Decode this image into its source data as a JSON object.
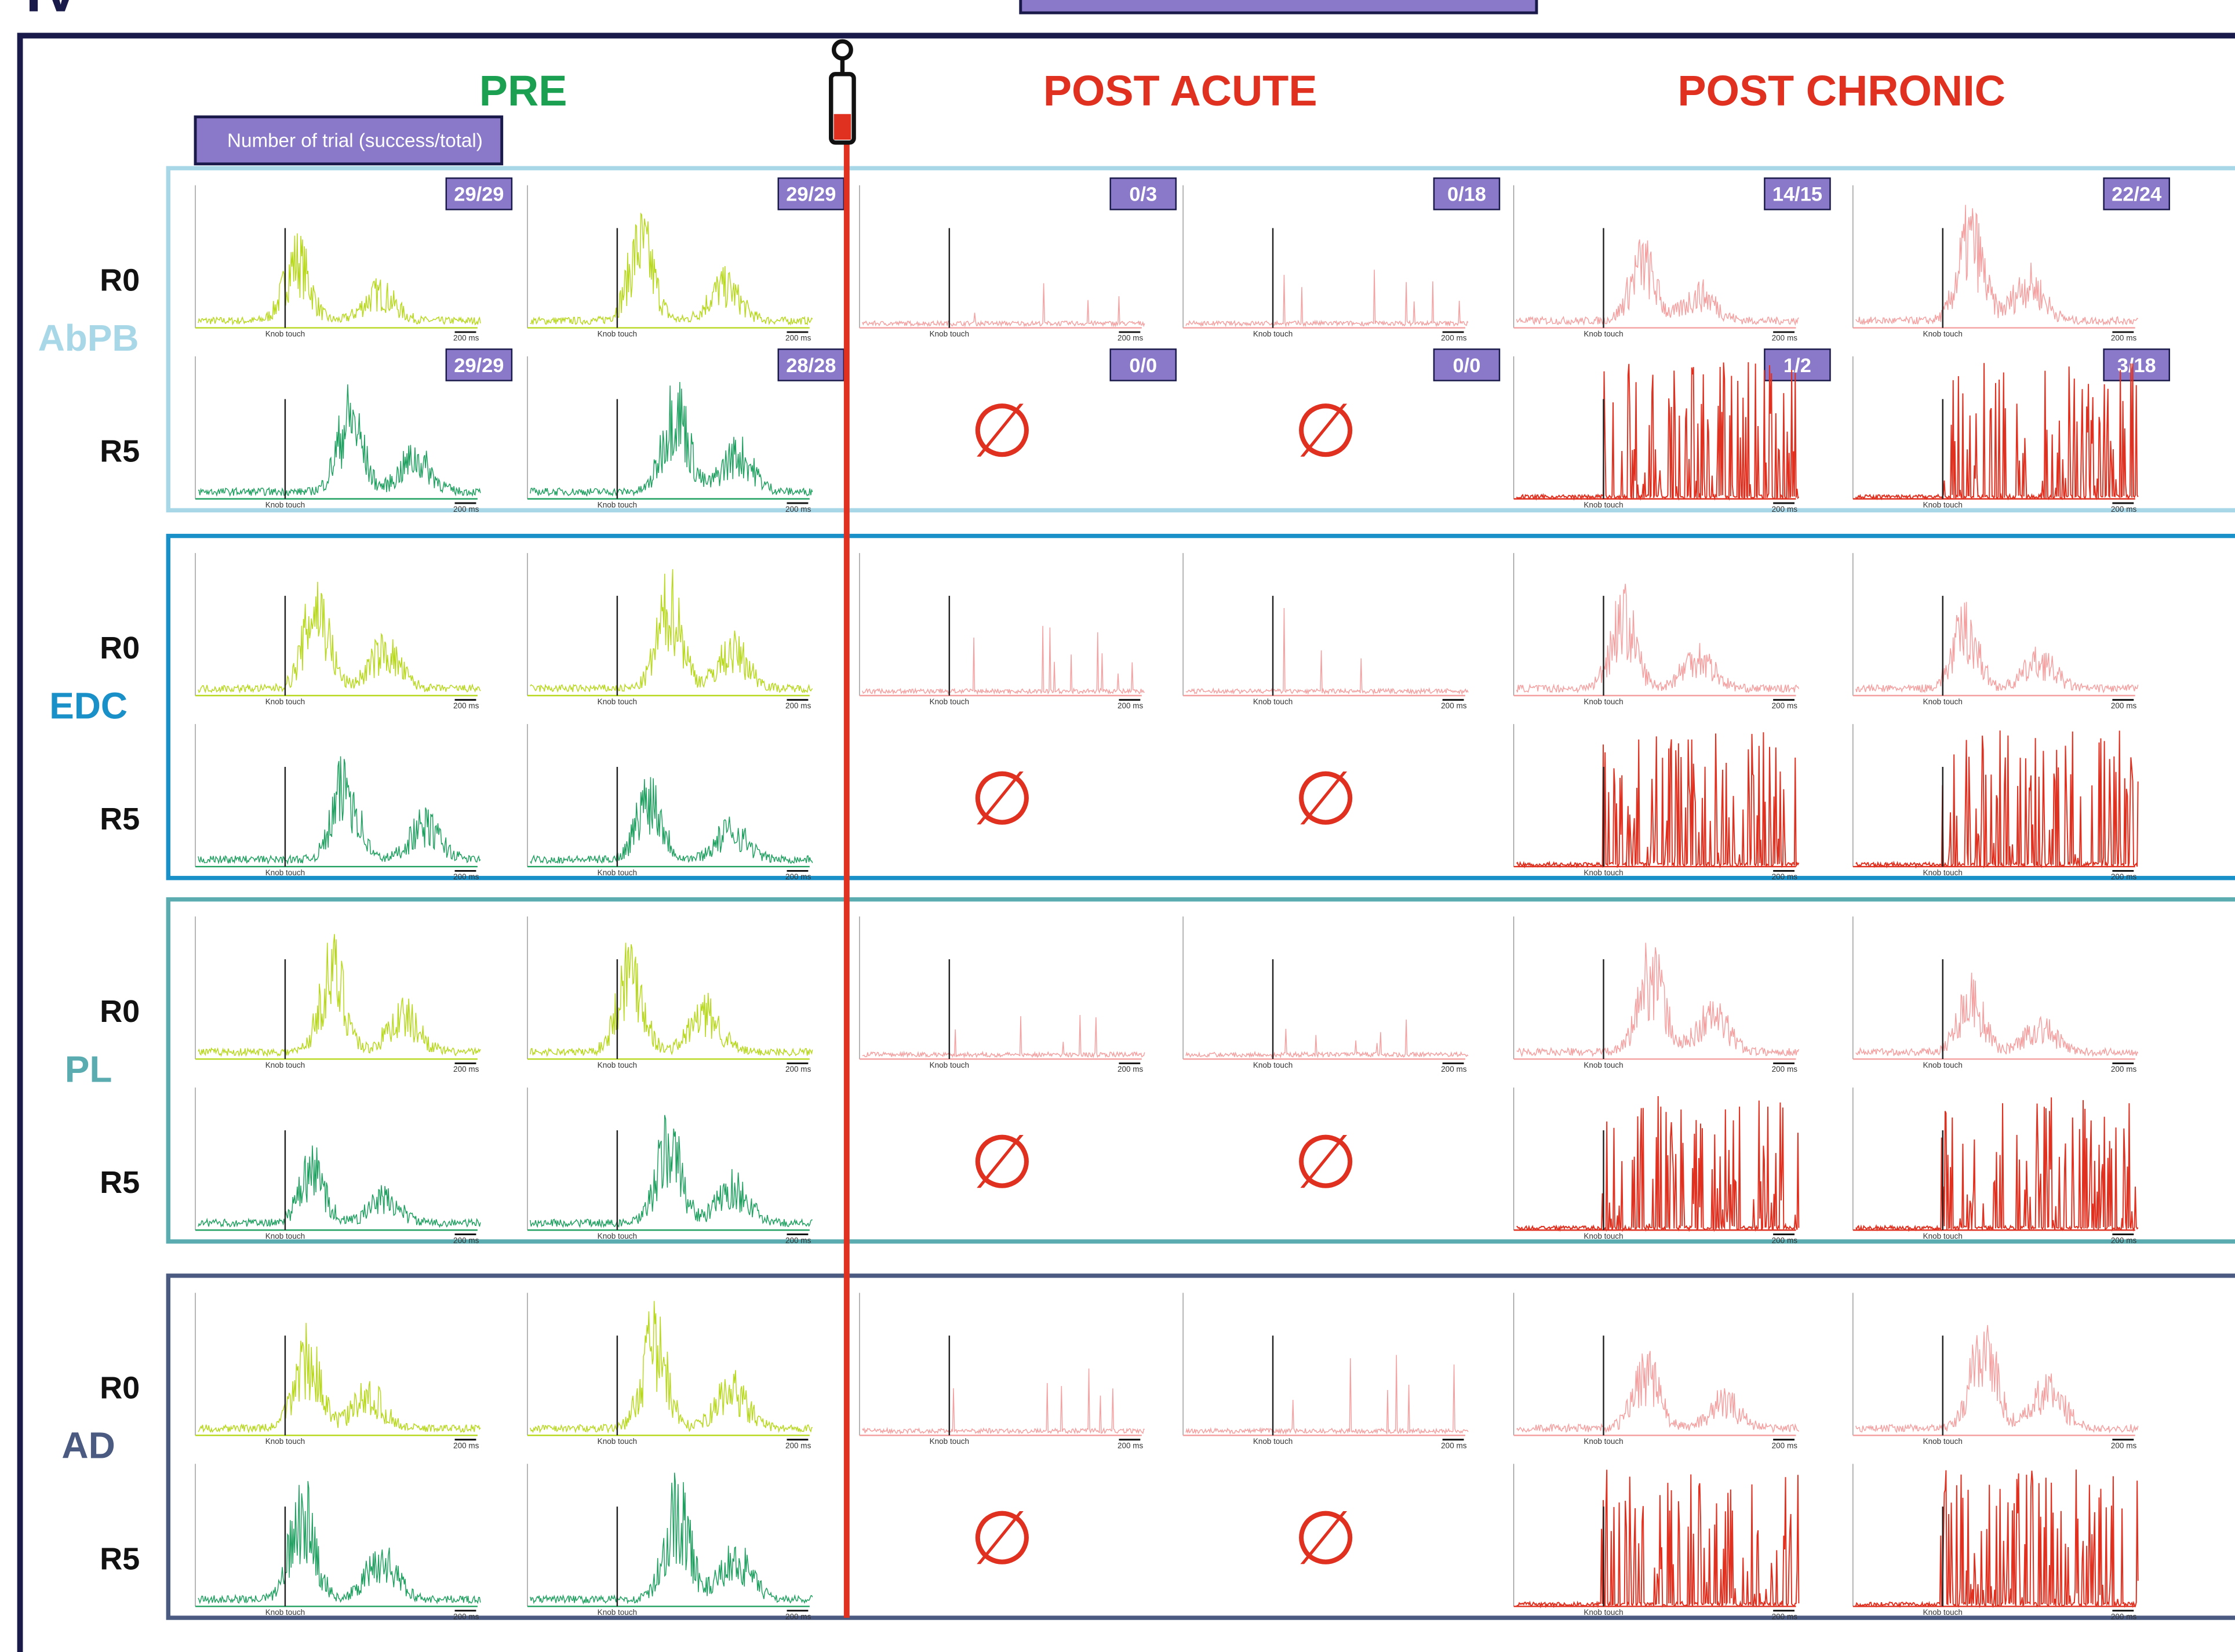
{
  "panel": "IV",
  "legend": "Number of trial (success/total)",
  "columns": [
    {
      "title": "PRE"
    },
    {
      "title": "POST ACUTE"
    },
    {
      "title": "POST CHRONIC"
    }
  ],
  "event_label": "Knob touch",
  "scale_label": "200 ms",
  "no_data_symbol": "∅",
  "muscles": [
    {
      "name": "AbPB",
      "rows": [
        {
          "label": "R0",
          "trials": [
            "29/29",
            "29/29",
            "0/3",
            "0/18",
            "14/15",
            "22/24"
          ]
        },
        {
          "label": "R5",
          "trials": [
            "29/29",
            "28/28",
            "0/0",
            "0/0",
            "1/2",
            "3/18"
          ]
        }
      ]
    },
    {
      "name": "EDC",
      "rows": [
        {
          "label": "R0"
        },
        {
          "label": "R5"
        }
      ]
    },
    {
      "name": "PL",
      "rows": [
        {
          "label": "R0"
        },
        {
          "label": "R5"
        }
      ]
    },
    {
      "name": "AD",
      "rows": [
        {
          "label": "R0"
        },
        {
          "label": "R5"
        }
      ]
    }
  ]
}
